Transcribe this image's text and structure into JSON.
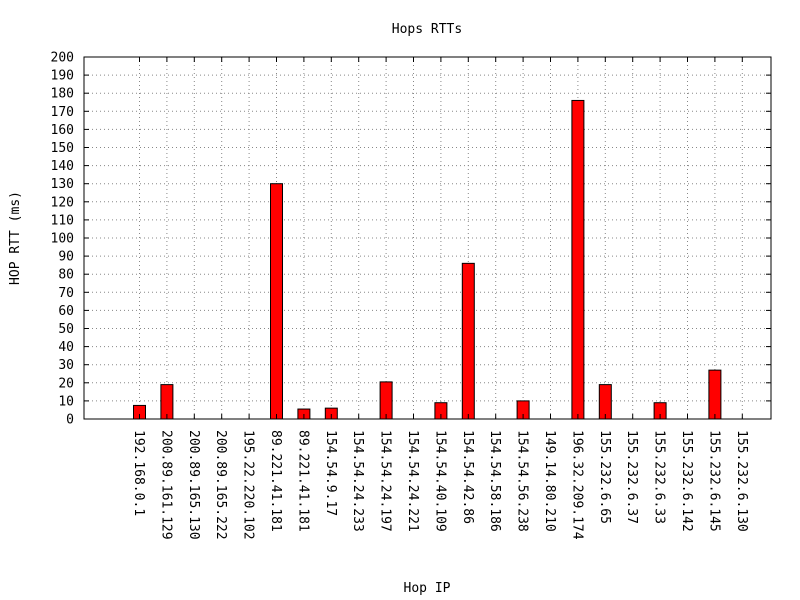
{
  "chart_data": {
    "type": "bar",
    "title": "Hops RTTs",
    "xlabel": "Hop IP",
    "ylabel": "HOP RTT (ms)",
    "ylim": [
      0,
      200
    ],
    "yticks": [
      0,
      10,
      20,
      30,
      40,
      50,
      60,
      70,
      80,
      90,
      100,
      110,
      120,
      130,
      140,
      150,
      160,
      170,
      180,
      190,
      200
    ],
    "grid": true,
    "bar_color": "#ff0000",
    "categories": [
      "192.168.0.1",
      "200.89.161.129",
      "200.89.165.130",
      "200.89.165.222",
      "195.22.220.102",
      "89.221.41.181",
      "89.221.41.181",
      "154.54.9.17",
      "154.54.24.233",
      "154.54.24.197",
      "154.54.24.221",
      "154.54.40.109",
      "154.54.42.86",
      "154.54.58.186",
      "154.54.56.238",
      "149.14.80.210",
      "196.32.209.174",
      "155.232.6.65",
      "155.232.6.37",
      "155.232.6.33",
      "155.232.6.142",
      "155.232.6.145",
      "155.232.6.130"
    ],
    "values": [
      7.5,
      19,
      0,
      0,
      0,
      130,
      5.5,
      6,
      0,
      20.5,
      0,
      9,
      86,
      0,
      10,
      0,
      176,
      19,
      0,
      9,
      0,
      27,
      0
    ]
  }
}
